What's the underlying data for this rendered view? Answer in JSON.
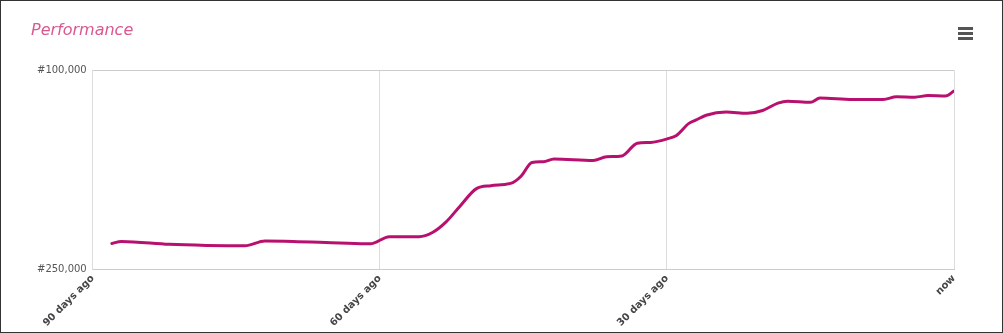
{
  "chart_data": {
    "type": "line",
    "title": "Performance",
    "x": [
      -88.0,
      -87.0,
      -82.0,
      -78.1,
      -74.1,
      -72.0,
      -69.1,
      -64.2,
      -61.0,
      -59.0,
      -57.0,
      -55.9,
      -54.5,
      -53.1,
      -51.6,
      -49.9,
      -48.4,
      -46.1,
      -45.2,
      -44.1,
      -42.9,
      -41.8,
      -37.7,
      -36.3,
      -34.7,
      -33.1,
      -31.7,
      -29.9,
      -29.0,
      -27.7,
      -27.0,
      -25.9,
      -23.8,
      -21.6,
      -20.0,
      -18.4,
      -17.4,
      -15.0,
      -14.0,
      -10.6,
      -7.4,
      -6.0,
      -4.1,
      -2.7,
      -0.9,
      0
    ],
    "series": [
      {
        "color": "#b8106e",
        "values": [
          230300,
          228800,
          231000,
          231800,
          232100,
          228500,
          228800,
          230000,
          230600,
          225200,
          225200,
          225200,
          222100,
          214300,
          202100,
          189100,
          186900,
          184500,
          179400,
          169400,
          168800,
          166700,
          167900,
          165100,
          164500,
          154900,
          154300,
          151500,
          149100,
          140000,
          137600,
          133900,
          131500,
          132400,
          130300,
          124800,
          123300,
          124200,
          120900,
          122100,
          122100,
          120000,
          120300,
          119100,
          119400,
          115700
        ]
      }
    ],
    "xlim": [
      -90,
      0
    ],
    "xticks": [
      {
        "value": -90,
        "label": "90 days ago"
      },
      {
        "value": -60,
        "label": "60 days ago"
      },
      {
        "value": -30,
        "label": "30 days ago"
      },
      {
        "value": 0,
        "label": "now"
      }
    ],
    "ylim": [
      250000,
      100000
    ],
    "yticks": [
      {
        "value": 100000,
        "label": "#100,000"
      },
      {
        "value": 250000,
        "label": "#250,000"
      }
    ],
    "grid": true,
    "legend": false,
    "marker": "none",
    "line_style": "solid"
  }
}
